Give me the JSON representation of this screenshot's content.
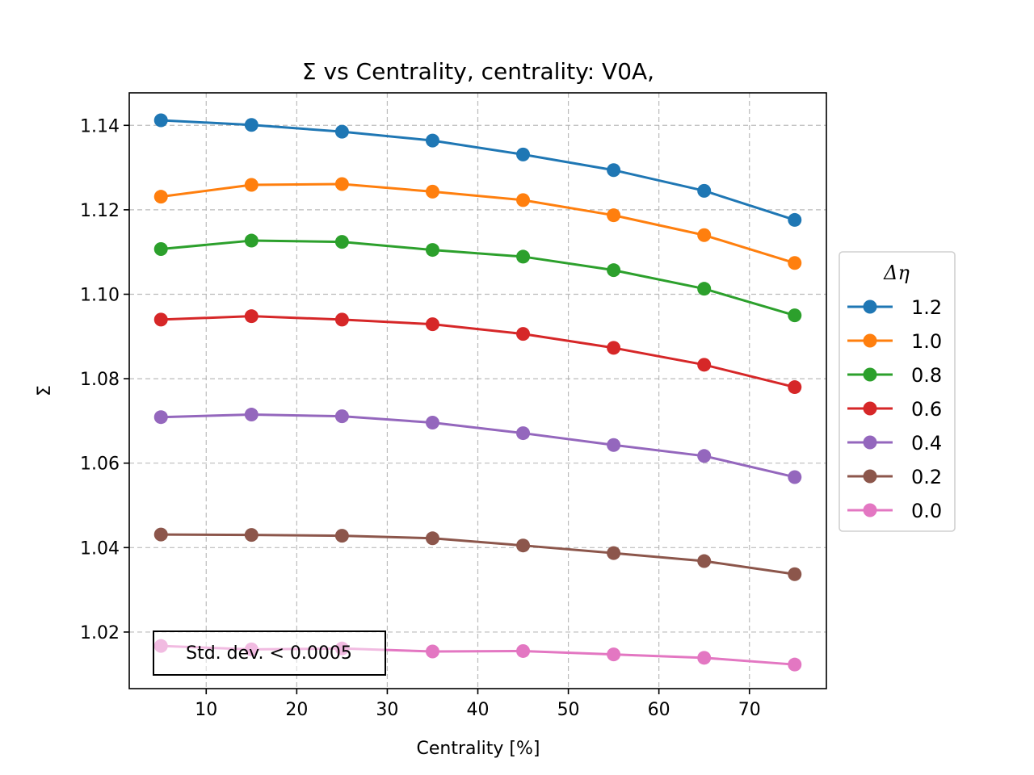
{
  "chart_data": {
    "type": "line",
    "title": "Σ vs Centrality, centrality: V0A,",
    "xlabel": "Centrality [%]",
    "ylabel": "Σ",
    "xlim": [
      1.5,
      78.5
    ],
    "ylim": [
      1.0066,
      1.1477
    ],
    "x_ticks": [
      10,
      20,
      30,
      40,
      50,
      60,
      70
    ],
    "y_ticks": [
      1.02,
      1.04,
      1.06,
      1.08,
      1.1,
      1.12,
      1.14
    ],
    "x_tick_labels": [
      "10",
      "20",
      "30",
      "40",
      "50",
      "60",
      "70"
    ],
    "y_tick_labels": [
      "1.02",
      "1.04",
      "1.06",
      "1.08",
      "1.10",
      "1.12",
      "1.14"
    ],
    "grid": true,
    "legend_title": "Δη",
    "legend_position": "outside right",
    "annotation": "Std. dev. < 0.0005",
    "x": [
      5,
      15,
      25,
      35,
      45,
      55,
      65,
      75
    ],
    "series": [
      {
        "name": "1.2",
        "color": "#1f77b4",
        "values": [
          1.1412,
          1.1401,
          1.1385,
          1.1364,
          1.1331,
          1.1294,
          1.1245,
          1.1176
        ]
      },
      {
        "name": "1.0",
        "color": "#ff7f0e",
        "values": [
          1.1231,
          1.1259,
          1.1261,
          1.1243,
          1.1223,
          1.1187,
          1.114,
          1.1074
        ]
      },
      {
        "name": "0.8",
        "color": "#2ca02c",
        "values": [
          1.1107,
          1.1127,
          1.1124,
          1.1105,
          1.1089,
          1.1057,
          1.1013,
          1.095
        ]
      },
      {
        "name": "0.6",
        "color": "#d62728",
        "values": [
          1.094,
          1.0948,
          1.094,
          1.0929,
          1.0906,
          1.0873,
          1.0833,
          1.078
        ]
      },
      {
        "name": "0.4",
        "color": "#9467bd",
        "values": [
          1.0709,
          1.0715,
          1.0711,
          1.0696,
          1.0671,
          1.0643,
          1.0617,
          1.0567
        ]
      },
      {
        "name": "0.2",
        "color": "#8c564b",
        "values": [
          1.0431,
          1.043,
          1.0428,
          1.0422,
          1.0405,
          1.0387,
          1.0368,
          1.0337
        ]
      },
      {
        "name": "0.0",
        "color": "#e377c2",
        "values": [
          1.0167,
          1.0159,
          1.0161,
          1.0154,
          1.0155,
          1.0147,
          1.0139,
          1.0123
        ]
      }
    ]
  }
}
